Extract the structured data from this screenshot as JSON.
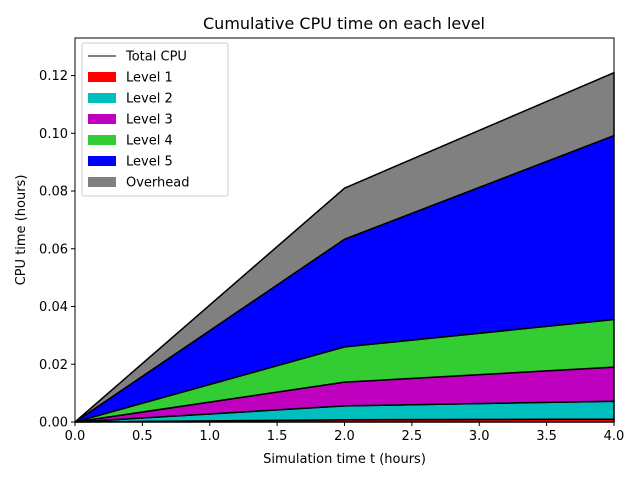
{
  "chart_data": {
    "type": "area",
    "title": "Cumulative CPU time on each level",
    "xlabel": "Simulation time t (hours)",
    "ylabel": "CPU time (hours)",
    "x": [
      0.0,
      2.0,
      4.0
    ],
    "xlim": [
      0.0,
      4.0
    ],
    "ylim": [
      0.0,
      0.133
    ],
    "xticks": [
      "0.0",
      "0.5",
      "1.0",
      "1.5",
      "2.0",
      "2.5",
      "3.0",
      "3.5",
      "4.0"
    ],
    "yticks": [
      "0.00",
      "0.02",
      "0.04",
      "0.06",
      "0.08",
      "0.10",
      "0.12"
    ],
    "grid": false,
    "legend_position": "top-left",
    "total_label": "Total CPU",
    "total_color": "#000000",
    "series": [
      {
        "name": "Level 1",
        "color": "#ff0000",
        "values": [
          0.0,
          0.0008,
          0.001
        ]
      },
      {
        "name": "Level 2",
        "color": "#00bfbf",
        "values": [
          0.0,
          0.0048,
          0.0062
        ]
      },
      {
        "name": "Level 3",
        "color": "#bf00bf",
        "values": [
          0.0,
          0.0082,
          0.0118
        ]
      },
      {
        "name": "Level 4",
        "color": "#33cc33",
        "values": [
          0.0,
          0.0122,
          0.0165
        ]
      },
      {
        "name": "Level 5",
        "color": "#0000ff",
        "values": [
          0.0,
          0.0373,
          0.0637
        ]
      },
      {
        "name": "Overhead",
        "color": "#808080",
        "values": [
          0.0,
          0.0177,
          0.0218
        ]
      }
    ]
  }
}
